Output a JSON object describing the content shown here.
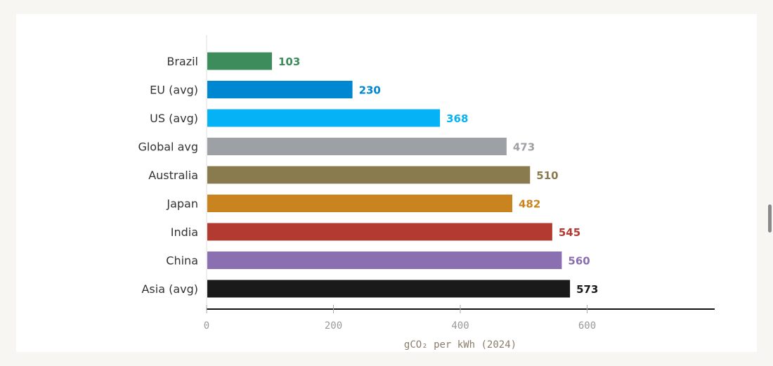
{
  "chart_data": {
    "type": "bar",
    "orientation": "horizontal",
    "categories": [
      "Brazil",
      "EU (avg)",
      "US (avg)",
      "Global avg",
      "Australia",
      "Japan",
      "India",
      "China",
      "Asia (avg)"
    ],
    "values": [
      103,
      230,
      368,
      473,
      510,
      482,
      545,
      560,
      573
    ],
    "value_labels": [
      "103",
      "230",
      "368",
      "473",
      "510",
      "482",
      "545",
      "560",
      "573"
    ],
    "colors": [
      "#3c8c5c",
      "#0087d1",
      "#05b2f5",
      "#9da1a6",
      "#8a7b4f",
      "#c9841f",
      "#b33a30",
      "#8a70b0",
      "#1a1a1a"
    ],
    "label_colors": [
      "#3c8c5c",
      "#0087d1",
      "#05b2f5",
      "#9da1a6",
      "#8a7b4f",
      "#c9841f",
      "#b33a30",
      "#8a70b0",
      "#1a1a1a"
    ],
    "xticks": [
      0,
      200,
      400,
      600
    ],
    "xtick_labels": [
      "0",
      "200",
      "400",
      "600"
    ],
    "xlim": [
      0,
      800
    ],
    "xlabel": "gCO₂ per kWh (2024)",
    "grid": false
  }
}
